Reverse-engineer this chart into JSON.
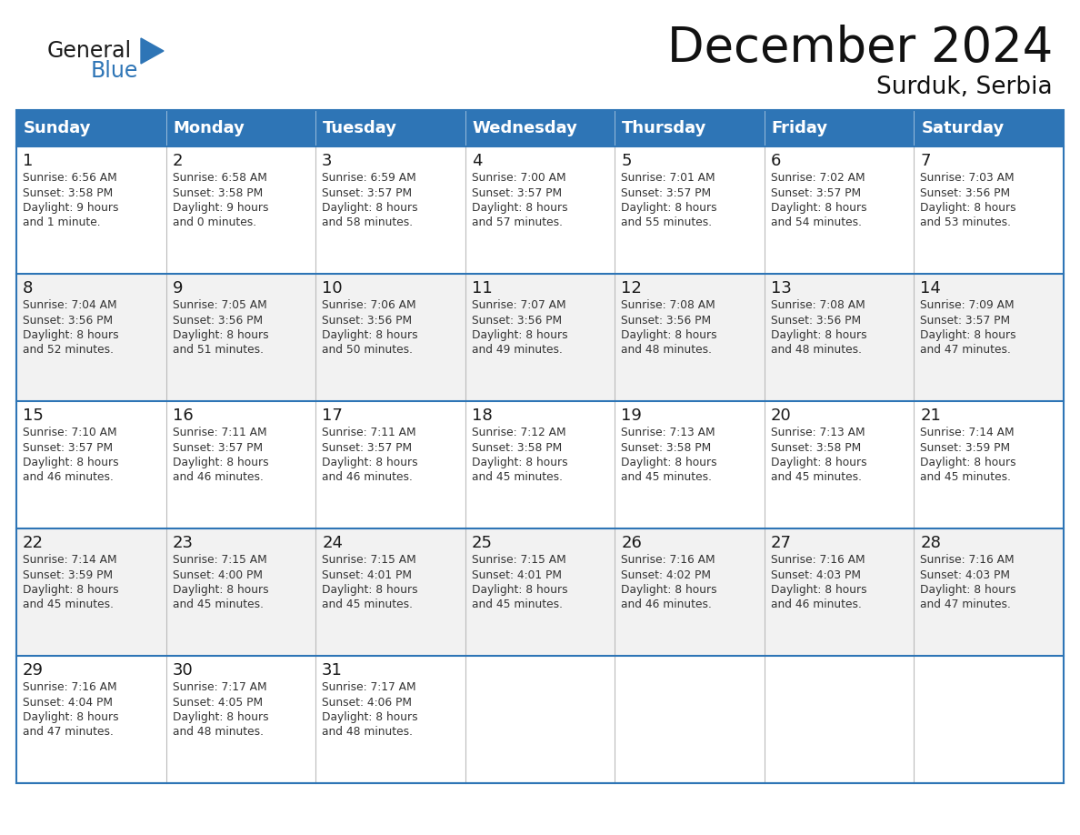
{
  "title": "December 2024",
  "subtitle": "Surduk, Serbia",
  "header_color": "#2E75B6",
  "header_text_color": "#FFFFFF",
  "cell_bg_color": "#FFFFFF",
  "alt_cell_bg_color": "#F2F2F2",
  "border_color": "#2E75B6",
  "day_names": [
    "Sunday",
    "Monday",
    "Tuesday",
    "Wednesday",
    "Thursday",
    "Friday",
    "Saturday"
  ],
  "weeks": [
    [
      {
        "day": "1",
        "info": "Sunrise: 6:56 AM\nSunset: 3:58 PM\nDaylight: 9 hours\nand 1 minute."
      },
      {
        "day": "2",
        "info": "Sunrise: 6:58 AM\nSunset: 3:58 PM\nDaylight: 9 hours\nand 0 minutes."
      },
      {
        "day": "3",
        "info": "Sunrise: 6:59 AM\nSunset: 3:57 PM\nDaylight: 8 hours\nand 58 minutes."
      },
      {
        "day": "4",
        "info": "Sunrise: 7:00 AM\nSunset: 3:57 PM\nDaylight: 8 hours\nand 57 minutes."
      },
      {
        "day": "5",
        "info": "Sunrise: 7:01 AM\nSunset: 3:57 PM\nDaylight: 8 hours\nand 55 minutes."
      },
      {
        "day": "6",
        "info": "Sunrise: 7:02 AM\nSunset: 3:57 PM\nDaylight: 8 hours\nand 54 minutes."
      },
      {
        "day": "7",
        "info": "Sunrise: 7:03 AM\nSunset: 3:56 PM\nDaylight: 8 hours\nand 53 minutes."
      }
    ],
    [
      {
        "day": "8",
        "info": "Sunrise: 7:04 AM\nSunset: 3:56 PM\nDaylight: 8 hours\nand 52 minutes."
      },
      {
        "day": "9",
        "info": "Sunrise: 7:05 AM\nSunset: 3:56 PM\nDaylight: 8 hours\nand 51 minutes."
      },
      {
        "day": "10",
        "info": "Sunrise: 7:06 AM\nSunset: 3:56 PM\nDaylight: 8 hours\nand 50 minutes."
      },
      {
        "day": "11",
        "info": "Sunrise: 7:07 AM\nSunset: 3:56 PM\nDaylight: 8 hours\nand 49 minutes."
      },
      {
        "day": "12",
        "info": "Sunrise: 7:08 AM\nSunset: 3:56 PM\nDaylight: 8 hours\nand 48 minutes."
      },
      {
        "day": "13",
        "info": "Sunrise: 7:08 AM\nSunset: 3:56 PM\nDaylight: 8 hours\nand 48 minutes."
      },
      {
        "day": "14",
        "info": "Sunrise: 7:09 AM\nSunset: 3:57 PM\nDaylight: 8 hours\nand 47 minutes."
      }
    ],
    [
      {
        "day": "15",
        "info": "Sunrise: 7:10 AM\nSunset: 3:57 PM\nDaylight: 8 hours\nand 46 minutes."
      },
      {
        "day": "16",
        "info": "Sunrise: 7:11 AM\nSunset: 3:57 PM\nDaylight: 8 hours\nand 46 minutes."
      },
      {
        "day": "17",
        "info": "Sunrise: 7:11 AM\nSunset: 3:57 PM\nDaylight: 8 hours\nand 46 minutes."
      },
      {
        "day": "18",
        "info": "Sunrise: 7:12 AM\nSunset: 3:58 PM\nDaylight: 8 hours\nand 45 minutes."
      },
      {
        "day": "19",
        "info": "Sunrise: 7:13 AM\nSunset: 3:58 PM\nDaylight: 8 hours\nand 45 minutes."
      },
      {
        "day": "20",
        "info": "Sunrise: 7:13 AM\nSunset: 3:58 PM\nDaylight: 8 hours\nand 45 minutes."
      },
      {
        "day": "21",
        "info": "Sunrise: 7:14 AM\nSunset: 3:59 PM\nDaylight: 8 hours\nand 45 minutes."
      }
    ],
    [
      {
        "day": "22",
        "info": "Sunrise: 7:14 AM\nSunset: 3:59 PM\nDaylight: 8 hours\nand 45 minutes."
      },
      {
        "day": "23",
        "info": "Sunrise: 7:15 AM\nSunset: 4:00 PM\nDaylight: 8 hours\nand 45 minutes."
      },
      {
        "day": "24",
        "info": "Sunrise: 7:15 AM\nSunset: 4:01 PM\nDaylight: 8 hours\nand 45 minutes."
      },
      {
        "day": "25",
        "info": "Sunrise: 7:15 AM\nSunset: 4:01 PM\nDaylight: 8 hours\nand 45 minutes."
      },
      {
        "day": "26",
        "info": "Sunrise: 7:16 AM\nSunset: 4:02 PM\nDaylight: 8 hours\nand 46 minutes."
      },
      {
        "day": "27",
        "info": "Sunrise: 7:16 AM\nSunset: 4:03 PM\nDaylight: 8 hours\nand 46 minutes."
      },
      {
        "day": "28",
        "info": "Sunrise: 7:16 AM\nSunset: 4:03 PM\nDaylight: 8 hours\nand 47 minutes."
      }
    ],
    [
      {
        "day": "29",
        "info": "Sunrise: 7:16 AM\nSunset: 4:04 PM\nDaylight: 8 hours\nand 47 minutes."
      },
      {
        "day": "30",
        "info": "Sunrise: 7:17 AM\nSunset: 4:05 PM\nDaylight: 8 hours\nand 48 minutes."
      },
      {
        "day": "31",
        "info": "Sunrise: 7:17 AM\nSunset: 4:06 PM\nDaylight: 8 hours\nand 48 minutes."
      },
      {
        "day": "",
        "info": ""
      },
      {
        "day": "",
        "info": ""
      },
      {
        "day": "",
        "info": ""
      },
      {
        "day": "",
        "info": ""
      }
    ]
  ],
  "logo_general_color": "#1a1a1a",
  "logo_blue_color": "#2E75B6"
}
